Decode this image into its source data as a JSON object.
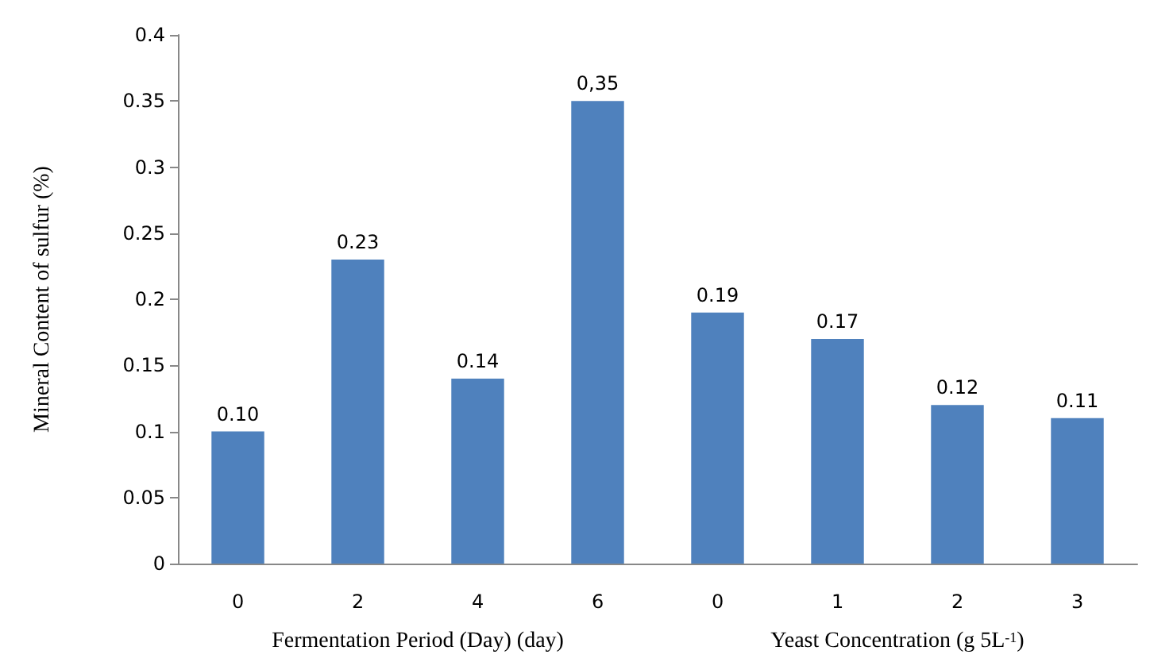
{
  "chart_data": {
    "type": "bar",
    "ylabel": "Mineral Content of sulfur (%)",
    "categories": [
      "0",
      "2",
      "4",
      "6",
      "0",
      "1",
      "2",
      "3"
    ],
    "values": [
      0.1,
      0.23,
      0.14,
      0.35,
      0.19,
      0.17,
      0.12,
      0.11
    ],
    "value_labels": [
      "0.10",
      "0.23",
      "0.14",
      "0,35",
      "0.19",
      "0.17",
      "0.12",
      "0.11"
    ],
    "color": "#4f81bd",
    "ylim": [
      0,
      0.4
    ],
    "yticks": [
      0,
      0.05,
      0.1,
      0.15,
      0.2,
      0.25,
      0.3,
      0.35,
      0.4
    ],
    "annotations": [
      "Fermentation Period (Day) (day)",
      "Yeast Concentration (g 5L$^{-1}$)"
    ],
    "grid": false
  }
}
